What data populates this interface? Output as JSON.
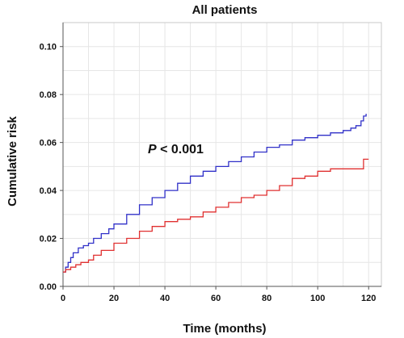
{
  "chart_data": {
    "type": "line",
    "title": "All patients",
    "xlabel": "Time (months)",
    "ylabel": "Cumulative  risk",
    "xlim": [
      0,
      125
    ],
    "ylim": [
      0,
      0.11
    ],
    "xticks": [
      "0",
      "20",
      "40",
      "60",
      "80",
      "100",
      "120"
    ],
    "yticks": [
      "0.00",
      "0.02",
      "0.04",
      "0.06",
      "0.08",
      "0.10"
    ],
    "grid": true,
    "annotation": {
      "prefix": "P",
      "text": " < 0.001"
    },
    "colors": {
      "blue": "#3030c8",
      "red": "#e03030"
    },
    "series": [
      {
        "color": "blue",
        "x": [
          0,
          1,
          2,
          3,
          4,
          6,
          8,
          10,
          12,
          15,
          18,
          20,
          25,
          30,
          35,
          40,
          45,
          50,
          55,
          60,
          65,
          70,
          75,
          80,
          85,
          90,
          95,
          100,
          105,
          110,
          113,
          115,
          117,
          118,
          119
        ],
        "y": [
          0.006,
          0.008,
          0.01,
          0.012,
          0.014,
          0.016,
          0.017,
          0.018,
          0.02,
          0.022,
          0.024,
          0.026,
          0.03,
          0.034,
          0.037,
          0.04,
          0.043,
          0.046,
          0.048,
          0.05,
          0.052,
          0.054,
          0.056,
          0.058,
          0.059,
          0.061,
          0.062,
          0.063,
          0.064,
          0.065,
          0.066,
          0.067,
          0.069,
          0.071,
          0.072
        ]
      },
      {
        "color": "red",
        "x": [
          0,
          1,
          3,
          5,
          7,
          10,
          12,
          15,
          20,
          25,
          30,
          35,
          40,
          45,
          50,
          55,
          60,
          65,
          70,
          75,
          80,
          85,
          90,
          95,
          100,
          105,
          110,
          115,
          118,
          120
        ],
        "y": [
          0.006,
          0.007,
          0.008,
          0.009,
          0.01,
          0.011,
          0.013,
          0.015,
          0.018,
          0.02,
          0.023,
          0.025,
          0.027,
          0.028,
          0.029,
          0.031,
          0.033,
          0.035,
          0.037,
          0.038,
          0.04,
          0.042,
          0.045,
          0.046,
          0.048,
          0.049,
          0.049,
          0.049,
          0.053,
          0.053
        ]
      }
    ]
  }
}
